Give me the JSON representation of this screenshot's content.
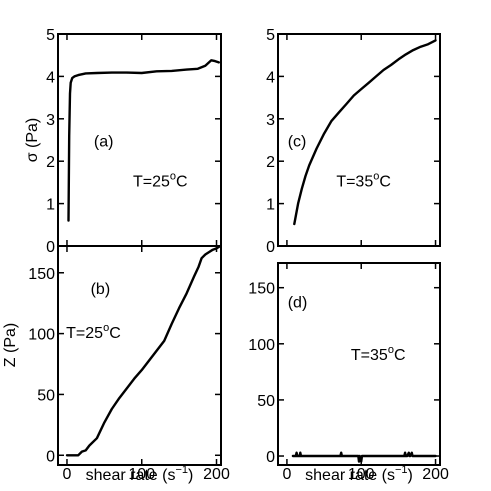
{
  "chart_data": [
    {
      "id": "a",
      "type": "line",
      "panel_label": "(a)",
      "annotation": "T=25",
      "annotation_sup": "o",
      "annotation_tail": "C",
      "ylabel": "σ (Pa)",
      "xlabel": "",
      "xlim": [
        -12,
        206
      ],
      "ylim": [
        0,
        5
      ],
      "xticks": [
        0,
        100,
        200
      ],
      "yticks": [
        0,
        1,
        2,
        3,
        4,
        5
      ],
      "show_xtick_labels": false,
      "show_ytick_labels": true,
      "series": [
        {
          "x": [
            2,
            3,
            4,
            5,
            7,
            10,
            15,
            25,
            40,
            60,
            80,
            100,
            120,
            140,
            160,
            175,
            185,
            193,
            198,
            203
          ],
          "y": [
            0.6,
            2.6,
            3.6,
            3.85,
            3.96,
            4.0,
            4.03,
            4.07,
            4.08,
            4.09,
            4.09,
            4.08,
            4.12,
            4.13,
            4.16,
            4.18,
            4.25,
            4.38,
            4.36,
            4.33
          ]
        }
      ]
    },
    {
      "id": "b",
      "type": "line",
      "panel_label": "(b)",
      "annotation": "T=25",
      "annotation_sup": "o",
      "annotation_tail": "C",
      "ylabel": "Z (Pa)",
      "xlabel": "shear rate (s",
      "xlabel_sup": "−1",
      "xlabel_tail": ")",
      "xlim": [
        -12,
        206
      ],
      "ylim": [
        -8,
        172
      ],
      "xticks": [
        0,
        100,
        200
      ],
      "yticks": [
        0,
        50,
        100,
        150
      ],
      "show_xtick_labels": true,
      "show_ytick_labels": true,
      "series": [
        {
          "x": [
            0,
            5,
            10,
            15,
            20,
            25,
            30,
            40,
            50,
            60,
            70,
            80,
            90,
            100,
            110,
            120,
            130,
            140,
            150,
            160,
            170,
            176,
            180,
            185,
            190,
            195,
            200,
            205
          ],
          "y": [
            0,
            0,
            0,
            0,
            3,
            4,
            8,
            14,
            27,
            38,
            47,
            55,
            63,
            70,
            78,
            86,
            94,
            108,
            121,
            133,
            147,
            155,
            162,
            165,
            167,
            169,
            170,
            172
          ]
        }
      ]
    },
    {
      "id": "c",
      "type": "line",
      "panel_label": "(c)",
      "annotation": "T=35",
      "annotation_sup": "o",
      "annotation_tail": "C",
      "ylabel": "",
      "xlabel": "",
      "xlim": [
        -12,
        206
      ],
      "ylim": [
        0,
        5
      ],
      "xticks": [
        0,
        100,
        200
      ],
      "yticks": [
        0,
        1,
        2,
        3,
        4,
        5
      ],
      "show_xtick_labels": false,
      "show_ytick_labels": true,
      "series": [
        {
          "x": [
            10,
            15,
            20,
            25,
            30,
            40,
            50,
            60,
            70,
            80,
            90,
            100,
            110,
            120,
            130,
            140,
            150,
            160,
            170,
            180,
            190,
            200
          ],
          "y": [
            0.52,
            1.0,
            1.35,
            1.65,
            1.9,
            2.3,
            2.65,
            2.95,
            3.15,
            3.35,
            3.55,
            3.7,
            3.85,
            4.0,
            4.15,
            4.27,
            4.4,
            4.52,
            4.62,
            4.7,
            4.76,
            4.85
          ]
        }
      ]
    },
    {
      "id": "d",
      "type": "line",
      "panel_label": "(d)",
      "annotation": "T=35",
      "annotation_sup": "o",
      "annotation_tail": "C",
      "ylabel": "",
      "xlabel": "shear rate (s",
      "xlabel_sup": "−1",
      "xlabel_tail": ")",
      "xlim": [
        -12,
        206
      ],
      "ylim": [
        -8,
        172
      ],
      "xticks": [
        0,
        100,
        200
      ],
      "yticks": [
        0,
        50,
        100,
        150
      ],
      "show_xtick_labels": true,
      "show_ytick_labels": true,
      "series": [
        {
          "x": [
            8,
            12,
            13,
            14,
            17,
            18,
            19,
            22,
            70,
            72,
            73,
            74,
            76,
            94,
            96,
            97,
            98,
            100,
            101,
            103,
            106,
            150,
            158,
            159,
            160,
            162,
            164,
            165,
            166,
            168,
            169,
            200
          ],
          "y": [
            0,
            0,
            3,
            0,
            0,
            3,
            0,
            0,
            0,
            0,
            3,
            0,
            0,
            0,
            0,
            -5,
            0,
            -5,
            0,
            0,
            0,
            0,
            0,
            3,
            0,
            0,
            3,
            0,
            0,
            3,
            0,
            0
          ]
        }
      ]
    }
  ]
}
